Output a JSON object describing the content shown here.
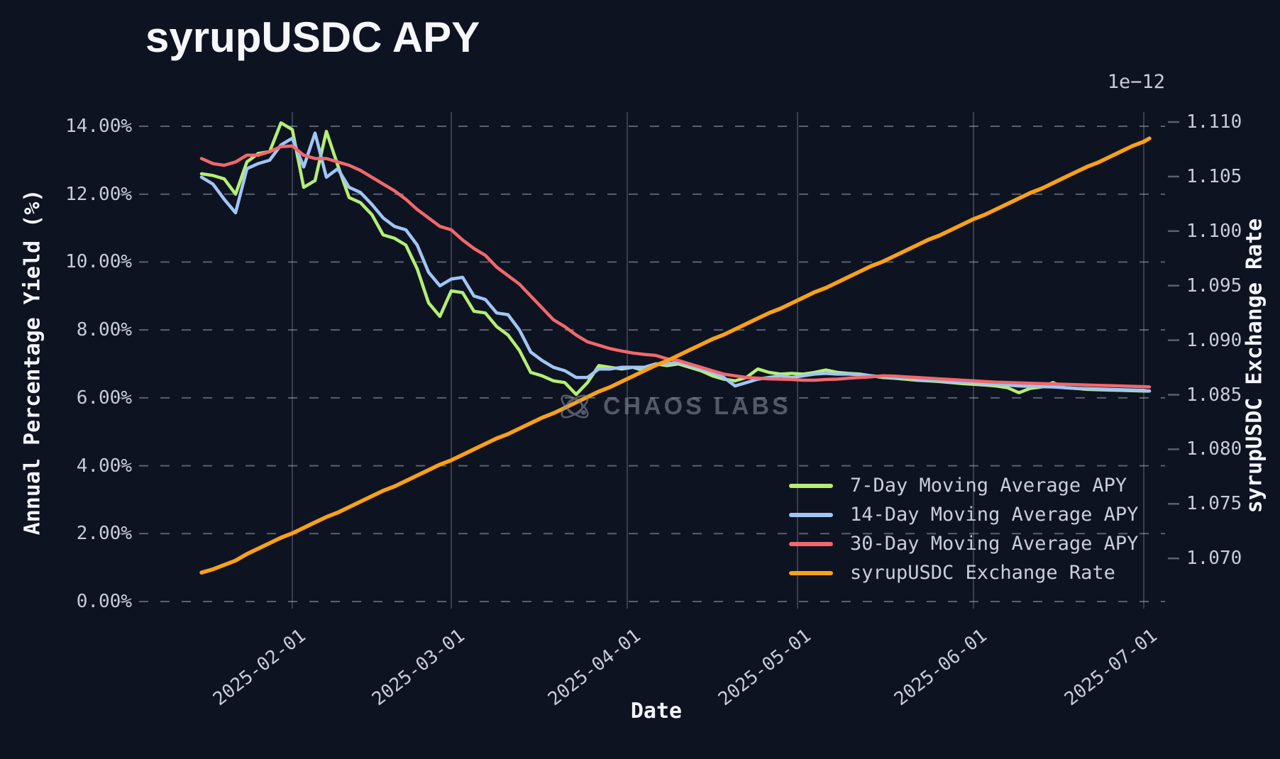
{
  "title": "syrupUSDC APY",
  "watermark": {
    "text": "CHAOS LABS",
    "icon": "chaos-labs-atom-icon"
  },
  "colors": {
    "background": "#0e1321",
    "grid_horizontal": "rgba(206,212,226,0.40)",
    "grid_vertical": "rgba(145,155,178,0.32)",
    "tick_text": "#c6ccda",
    "label_text": "#f3f5f9",
    "series_7d": "#b5ee74",
    "series_14d": "#a1c5f6",
    "series_30d": "#f1686c",
    "series_rate": "#f9a115"
  },
  "axes": {
    "x": {
      "label": "Date",
      "ticks": [
        "2025-02-01",
        "2025-03-01",
        "2025-04-01",
        "2025-05-01",
        "2025-06-01",
        "2025-07-01"
      ]
    },
    "y_left": {
      "label": "Annual Percentage Yield (%)",
      "ticks": [
        "14.00%",
        "12.00%",
        "10.00%",
        "8.00%",
        "6.00%",
        "4.00%",
        "2.00%",
        "0.00%"
      ],
      "range": [
        0,
        14
      ]
    },
    "y_right": {
      "label": "syrupUSDC Exchange Rate",
      "offset_text": "1e−12",
      "ticks": [
        "1.110",
        "1.105",
        "1.100",
        "1.095",
        "1.090",
        "1.085",
        "1.080",
        "1.075",
        "1.070"
      ],
      "range": [
        1.07,
        1.11
      ]
    }
  },
  "legend": {
    "position": "lower right",
    "items": [
      {
        "label": "7-Day Moving Average APY",
        "color": "#b5ee74"
      },
      {
        "label": "14-Day Moving Average APY",
        "color": "#a1c5f6"
      },
      {
        "label": "30-Day Moving Average APY",
        "color": "#f1686c"
      },
      {
        "label": "syrupUSDC Exchange Rate",
        "color": "#f9a115"
      }
    ]
  },
  "chart_data": {
    "type": "line",
    "title": "syrupUSDC APY",
    "xlabel": "Date",
    "ylabel_left": "Annual Percentage Yield (%)",
    "ylabel_right": "syrupUSDC Exchange Rate (1e-12)",
    "grid": true,
    "x_range": [
      "2025-01-16",
      "2025-07-02"
    ],
    "ylim_left": [
      0,
      14
    ],
    "ylim_right": [
      1.07,
      1.11
    ],
    "dates": [
      "2025-01-16",
      "2025-01-18",
      "2025-01-20",
      "2025-01-22",
      "2025-01-24",
      "2025-01-26",
      "2025-01-28",
      "2025-01-30",
      "2025-02-01",
      "2025-02-03",
      "2025-02-05",
      "2025-02-07",
      "2025-02-09",
      "2025-02-11",
      "2025-02-13",
      "2025-02-15",
      "2025-02-17",
      "2025-02-19",
      "2025-02-21",
      "2025-02-23",
      "2025-02-25",
      "2025-02-27",
      "2025-03-01",
      "2025-03-03",
      "2025-03-05",
      "2025-03-07",
      "2025-03-09",
      "2025-03-11",
      "2025-03-13",
      "2025-03-15",
      "2025-03-17",
      "2025-03-19",
      "2025-03-21",
      "2025-03-23",
      "2025-03-25",
      "2025-03-27",
      "2025-03-29",
      "2025-03-31",
      "2025-04-02",
      "2025-04-04",
      "2025-04-06",
      "2025-04-08",
      "2025-04-10",
      "2025-04-12",
      "2025-04-14",
      "2025-04-16",
      "2025-04-18",
      "2025-04-20",
      "2025-04-22",
      "2025-04-24",
      "2025-04-26",
      "2025-04-28",
      "2025-04-30",
      "2025-05-02",
      "2025-05-04",
      "2025-05-06",
      "2025-05-08",
      "2025-05-10",
      "2025-05-12",
      "2025-05-14",
      "2025-05-16",
      "2025-05-18",
      "2025-05-20",
      "2025-05-22",
      "2025-05-24",
      "2025-05-26",
      "2025-05-28",
      "2025-05-30",
      "2025-06-01",
      "2025-06-03",
      "2025-06-05",
      "2025-06-07",
      "2025-06-09",
      "2025-06-11",
      "2025-06-13",
      "2025-06-15",
      "2025-06-17",
      "2025-06-19",
      "2025-06-21",
      "2025-06-23",
      "2025-06-25",
      "2025-06-27",
      "2025-06-29",
      "2025-07-01",
      "2025-07-02"
    ],
    "series": [
      {
        "name": "7-Day Moving Average APY",
        "axis": "left",
        "color": "#b5ee74",
        "width": 4.5,
        "values": [
          12.6,
          12.55,
          12.45,
          12.0,
          12.95,
          13.2,
          13.25,
          14.1,
          13.9,
          12.2,
          12.4,
          13.85,
          12.85,
          11.9,
          11.75,
          11.4,
          10.8,
          10.7,
          10.5,
          9.8,
          8.8,
          8.4,
          9.15,
          9.1,
          8.55,
          8.5,
          8.1,
          7.85,
          7.4,
          6.75,
          6.65,
          6.5,
          6.45,
          6.1,
          6.45,
          6.95,
          6.9,
          6.85,
          6.9,
          6.8,
          7.0,
          6.95,
          7.0,
          6.9,
          6.8,
          6.65,
          6.55,
          6.5,
          6.6,
          6.85,
          6.75,
          6.7,
          6.72,
          6.7,
          6.75,
          6.82,
          6.75,
          6.72,
          6.7,
          6.65,
          6.6,
          6.58,
          6.55,
          6.52,
          6.5,
          6.48,
          6.45,
          6.42,
          6.4,
          6.38,
          6.35,
          6.3,
          6.15,
          6.28,
          6.32,
          6.45,
          6.3,
          6.28,
          6.25,
          6.24,
          6.23,
          6.22,
          6.21,
          6.2,
          6.2
        ]
      },
      {
        "name": "14-Day Moving Average APY",
        "axis": "left",
        "color": "#a1c5f6",
        "width": 4.5,
        "values": [
          12.5,
          12.3,
          11.85,
          11.45,
          12.75,
          12.9,
          13.0,
          13.45,
          13.65,
          12.8,
          13.8,
          12.5,
          12.75,
          12.2,
          12.05,
          11.7,
          11.3,
          11.05,
          10.95,
          10.5,
          9.7,
          9.3,
          9.5,
          9.55,
          9.0,
          8.9,
          8.5,
          8.45,
          8.0,
          7.35,
          7.1,
          6.9,
          6.8,
          6.6,
          6.6,
          6.85,
          6.85,
          6.9,
          6.9,
          6.9,
          7.0,
          7.0,
          7.05,
          6.95,
          6.85,
          6.75,
          6.6,
          6.35,
          6.45,
          6.55,
          6.6,
          6.65,
          6.6,
          6.65,
          6.7,
          6.72,
          6.7,
          6.7,
          6.68,
          6.65,
          6.62,
          6.6,
          6.58,
          6.55,
          6.52,
          6.5,
          6.48,
          6.46,
          6.45,
          6.42,
          6.4,
          6.38,
          6.35,
          6.34,
          6.33,
          6.32,
          6.3,
          6.28,
          6.27,
          6.26,
          6.25,
          6.24,
          6.23,
          6.22,
          6.2
        ]
      },
      {
        "name": "30-Day Moving Average APY",
        "axis": "left",
        "color": "#f1686c",
        "width": 4.5,
        "values": [
          13.05,
          12.9,
          12.85,
          12.95,
          13.15,
          13.15,
          13.25,
          13.4,
          13.42,
          13.15,
          13.05,
          13.05,
          12.95,
          12.85,
          12.7,
          12.5,
          12.3,
          12.1,
          11.85,
          11.55,
          11.3,
          11.05,
          10.95,
          10.65,
          10.4,
          10.2,
          9.85,
          9.6,
          9.35,
          9.0,
          8.65,
          8.3,
          8.1,
          7.85,
          7.65,
          7.55,
          7.45,
          7.38,
          7.32,
          7.28,
          7.25,
          7.15,
          7.1,
          7.0,
          6.9,
          6.8,
          6.7,
          6.65,
          6.6,
          6.58,
          6.56,
          6.55,
          6.54,
          6.52,
          6.52,
          6.54,
          6.55,
          6.58,
          6.6,
          6.62,
          6.65,
          6.64,
          6.62,
          6.6,
          6.58,
          6.56,
          6.54,
          6.52,
          6.5,
          6.48,
          6.46,
          6.45,
          6.44,
          6.43,
          6.42,
          6.41,
          6.4,
          6.39,
          6.38,
          6.37,
          6.36,
          6.35,
          6.34,
          6.33,
          6.32
        ]
      },
      {
        "name": "syrupUSDC Exchange Rate",
        "axis": "right",
        "color": "#f9a115",
        "width": 5.5,
        "values": [
          1.0687,
          1.069,
          1.0694,
          1.0698,
          1.0704,
          1.0709,
          1.0714,
          1.0719,
          1.0723,
          1.0728,
          1.0733,
          1.0738,
          1.0742,
          1.0747,
          1.0752,
          1.0757,
          1.0762,
          1.0766,
          1.0771,
          1.0776,
          1.0781,
          1.0786,
          1.079,
          1.0795,
          1.08,
          1.0805,
          1.081,
          1.0814,
          1.0819,
          1.0824,
          1.0829,
          1.0833,
          1.0838,
          1.0843,
          1.0848,
          1.0853,
          1.0857,
          1.0862,
          1.0867,
          1.0872,
          1.0877,
          1.0881,
          1.0886,
          1.0891,
          1.0896,
          1.0901,
          1.0905,
          1.091,
          1.0915,
          1.092,
          1.0925,
          1.0929,
          1.0934,
          1.0939,
          1.0944,
          1.0948,
          1.0953,
          1.0958,
          1.0963,
          1.0968,
          1.0972,
          1.0977,
          1.0982,
          1.0987,
          1.0992,
          1.0996,
          1.1001,
          1.1006,
          1.1011,
          1.1015,
          1.102,
          1.1025,
          1.103,
          1.1035,
          1.1039,
          1.1044,
          1.1049,
          1.1054,
          1.1059,
          1.1063,
          1.1068,
          1.1073,
          1.1078,
          1.1082,
          1.1085
        ]
      }
    ]
  }
}
